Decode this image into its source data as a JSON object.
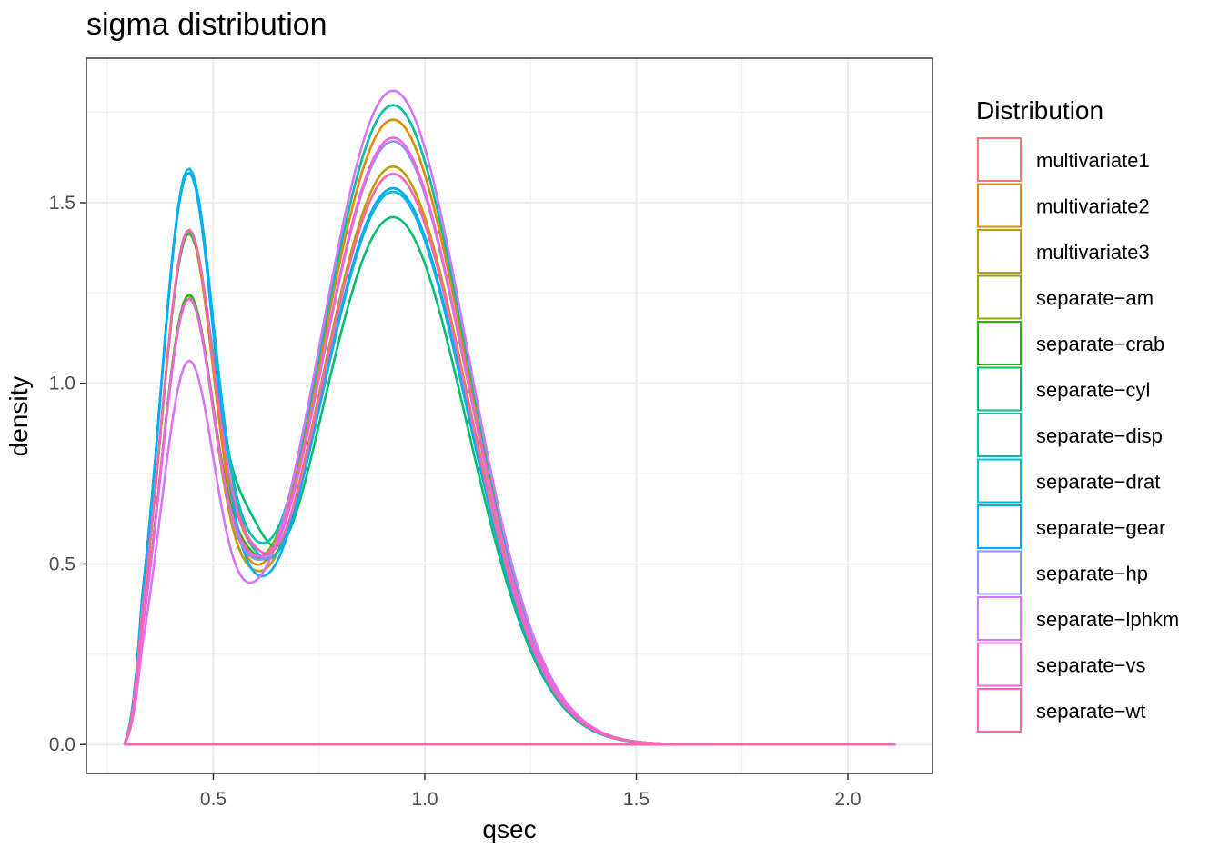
{
  "chart_data": {
    "type": "line",
    "title": "sigma distribution",
    "xlabel": "qsec",
    "ylabel": "density",
    "xlim": [
      0.2,
      2.2
    ],
    "ylim": [
      -0.08,
      1.9
    ],
    "x_ticks": [
      0.5,
      1.0,
      1.5,
      2.0
    ],
    "x_tick_labels": [
      "0.5",
      "1.0",
      "1.5",
      "2.0"
    ],
    "y_ticks": [
      0.0,
      0.5,
      1.0,
      1.5
    ],
    "y_tick_labels": [
      "0.0",
      "0.5",
      "1.0",
      "1.5"
    ],
    "grid": true,
    "legend_title": "Distribution",
    "legend_position": "right",
    "x_range": [
      0.29,
      2.11
    ],
    "series": [
      {
        "name": "multivariate1",
        "color": "#F8766D",
        "peak1": 1.42,
        "trough": 0.57,
        "peak2": 1.53
      },
      {
        "name": "multivariate2",
        "color": "#E18A00",
        "peak1": 1.41,
        "trough": 0.52,
        "peak2": 1.73
      },
      {
        "name": "multivariate3",
        "color": "#BE9C00",
        "peak1": 1.24,
        "trough": 0.5,
        "peak2": 1.6
      },
      {
        "name": "separate−am",
        "color": "#8CAB00",
        "peak1": 1.24,
        "trough": 0.53,
        "peak2": 1.77
      },
      {
        "name": "separate−crab",
        "color": "#24B700",
        "peak1": 1.24,
        "trough": 0.55,
        "peak2": 1.54
      },
      {
        "name": "separate−cyl",
        "color": "#00BE70",
        "peak1": 1.41,
        "trough": 0.66,
        "peak2": 1.46
      },
      {
        "name": "separate−disp",
        "color": "#00C1AB",
        "peak1": 1.59,
        "trough": 0.6,
        "peak2": 1.77
      },
      {
        "name": "separate−drat",
        "color": "#00BBDA",
        "peak1": 1.59,
        "trough": 0.58,
        "peak2": 1.53
      },
      {
        "name": "separate−gear",
        "color": "#00ACFC",
        "peak1": 1.58,
        "trough": 0.51,
        "peak2": 1.54
      },
      {
        "name": "separate−hp",
        "color": "#8B93FF",
        "peak1": 1.23,
        "trough": 0.53,
        "peak2": 1.67
      },
      {
        "name": "separate−lphkm",
        "color": "#D575FE",
        "peak1": 1.06,
        "trough": 0.45,
        "peak2": 1.81
      },
      {
        "name": "separate−vs",
        "color": "#F962DD",
        "peak1": 1.23,
        "trough": 0.54,
        "peak2": 1.68
      },
      {
        "name": "separate−wt",
        "color": "#FF65AC",
        "peak1": 1.42,
        "trough": 0.58,
        "peak2": 1.58
      }
    ]
  }
}
